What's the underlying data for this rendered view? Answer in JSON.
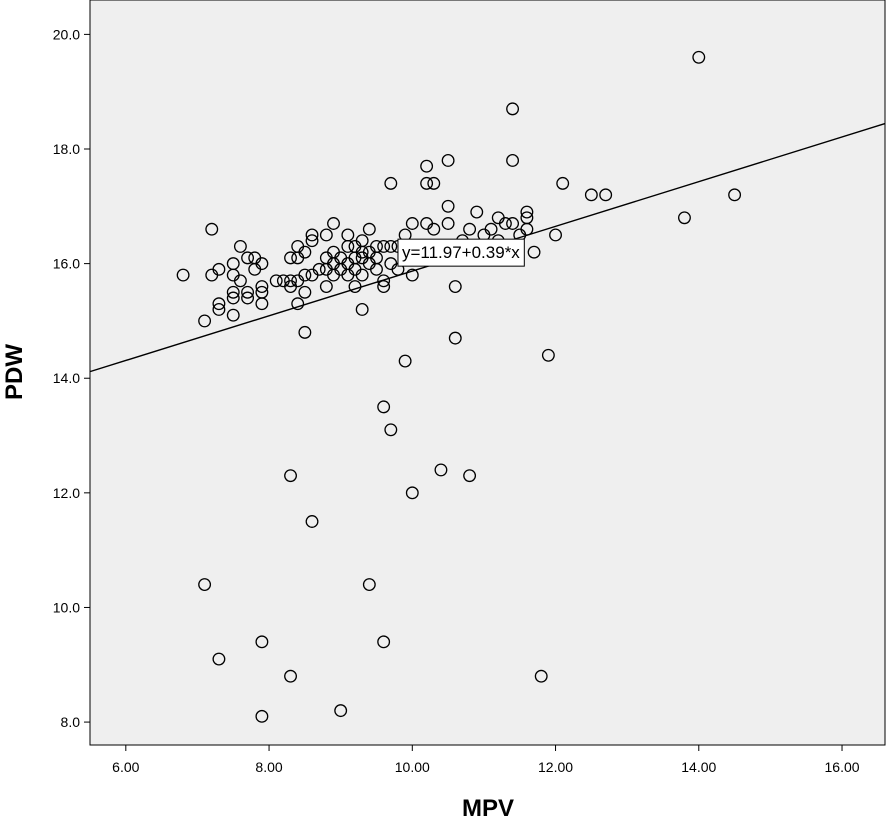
{
  "chart_data": {
    "type": "scatter",
    "title": "",
    "xlabel": "MPV",
    "ylabel": "PDW",
    "xlim": [
      5.5,
      16.6
    ],
    "ylim": [
      7.6,
      20.6
    ],
    "x_ticks": [
      6,
      8,
      10,
      12,
      14,
      16
    ],
    "y_ticks": [
      8,
      10,
      12,
      14,
      16,
      18,
      20
    ],
    "x_tick_labels": [
      "6.00",
      "8.00",
      "10.00",
      "12.00",
      "14.00",
      "16.00"
    ],
    "y_tick_labels": [
      "8.0",
      "10.0",
      "12.0",
      "14.0",
      "16.0",
      "18.0",
      "20.0"
    ],
    "grid": false,
    "plot_background": "#efefef",
    "marker": "open-circle",
    "fit_line": {
      "intercept": 11.97,
      "slope": 0.39,
      "label": "y=11.97+0.39*x",
      "label_at": [
        9.8,
        16.2
      ]
    },
    "points": [
      [
        6.8,
        15.8
      ],
      [
        7.1,
        15.0
      ],
      [
        7.1,
        10.4
      ],
      [
        7.2,
        16.6
      ],
      [
        7.2,
        15.8
      ],
      [
        7.3,
        15.9
      ],
      [
        7.3,
        15.3
      ],
      [
        7.3,
        15.2
      ],
      [
        7.3,
        9.1
      ],
      [
        7.5,
        16.0
      ],
      [
        7.5,
        15.8
      ],
      [
        7.5,
        15.5
      ],
      [
        7.5,
        15.4
      ],
      [
        7.5,
        15.1
      ],
      [
        7.6,
        16.3
      ],
      [
        7.6,
        15.7
      ],
      [
        7.7,
        16.1
      ],
      [
        7.7,
        15.5
      ],
      [
        7.7,
        15.4
      ],
      [
        7.8,
        16.1
      ],
      [
        7.8,
        15.9
      ],
      [
        7.9,
        16.0
      ],
      [
        7.9,
        15.6
      ],
      [
        7.9,
        15.5
      ],
      [
        7.9,
        15.3
      ],
      [
        7.9,
        9.4
      ],
      [
        7.9,
        8.1
      ],
      [
        8.1,
        15.7
      ],
      [
        8.2,
        15.7
      ],
      [
        8.3,
        16.1
      ],
      [
        8.3,
        15.7
      ],
      [
        8.3,
        15.6
      ],
      [
        8.3,
        12.3
      ],
      [
        8.3,
        8.8
      ],
      [
        8.4,
        16.3
      ],
      [
        8.4,
        16.1
      ],
      [
        8.4,
        15.7
      ],
      [
        8.4,
        15.3
      ],
      [
        8.5,
        16.2
      ],
      [
        8.5,
        15.8
      ],
      [
        8.5,
        15.5
      ],
      [
        8.5,
        14.8
      ],
      [
        8.6,
        16.5
      ],
      [
        8.6,
        16.4
      ],
      [
        8.6,
        15.8
      ],
      [
        8.6,
        11.5
      ],
      [
        8.7,
        15.9
      ],
      [
        8.8,
        16.5
      ],
      [
        8.8,
        16.1
      ],
      [
        8.8,
        15.9
      ],
      [
        8.8,
        15.6
      ],
      [
        8.9,
        16.7
      ],
      [
        8.9,
        16.2
      ],
      [
        8.9,
        16.0
      ],
      [
        8.9,
        15.8
      ],
      [
        9.0,
        16.1
      ],
      [
        9.0,
        15.9
      ],
      [
        9.0,
        8.2
      ],
      [
        9.1,
        16.5
      ],
      [
        9.1,
        16.3
      ],
      [
        9.1,
        16.0
      ],
      [
        9.1,
        15.8
      ],
      [
        9.2,
        16.3
      ],
      [
        9.2,
        16.1
      ],
      [
        9.2,
        15.9
      ],
      [
        9.2,
        15.6
      ],
      [
        9.3,
        16.4
      ],
      [
        9.3,
        16.2
      ],
      [
        9.3,
        16.1
      ],
      [
        9.3,
        15.8
      ],
      [
        9.3,
        15.2
      ],
      [
        9.4,
        16.6
      ],
      [
        9.4,
        16.2
      ],
      [
        9.4,
        16.0
      ],
      [
        9.4,
        10.4
      ],
      [
        9.5,
        16.3
      ],
      [
        9.5,
        16.1
      ],
      [
        9.5,
        15.9
      ],
      [
        9.6,
        16.3
      ],
      [
        9.6,
        15.7
      ],
      [
        9.6,
        15.6
      ],
      [
        9.6,
        13.5
      ],
      [
        9.6,
        9.4
      ],
      [
        9.7,
        17.4
      ],
      [
        9.7,
        16.3
      ],
      [
        9.7,
        16.0
      ],
      [
        9.7,
        13.1
      ],
      [
        9.8,
        16.3
      ],
      [
        9.8,
        15.9
      ],
      [
        9.9,
        16.5
      ],
      [
        9.9,
        16.1
      ],
      [
        9.9,
        14.3
      ],
      [
        10.0,
        16.7
      ],
      [
        10.0,
        15.8
      ],
      [
        10.0,
        12.0
      ],
      [
        10.1,
        16.1
      ],
      [
        10.2,
        17.7
      ],
      [
        10.2,
        17.4
      ],
      [
        10.2,
        16.7
      ],
      [
        10.3,
        17.4
      ],
      [
        10.3,
        16.6
      ],
      [
        10.4,
        12.4
      ],
      [
        10.5,
        17.8
      ],
      [
        10.5,
        17.0
      ],
      [
        10.5,
        16.7
      ],
      [
        10.6,
        15.6
      ],
      [
        10.6,
        14.7
      ],
      [
        10.7,
        16.4
      ],
      [
        10.8,
        16.6
      ],
      [
        10.8,
        12.3
      ],
      [
        10.9,
        16.9
      ],
      [
        11.0,
        16.5
      ],
      [
        11.1,
        16.6
      ],
      [
        11.2,
        16.8
      ],
      [
        11.2,
        16.4
      ],
      [
        11.3,
        16.7
      ],
      [
        11.4,
        18.7
      ],
      [
        11.4,
        17.8
      ],
      [
        11.4,
        16.7
      ],
      [
        11.5,
        16.5
      ],
      [
        11.6,
        16.9
      ],
      [
        11.6,
        16.8
      ],
      [
        11.6,
        16.6
      ],
      [
        11.7,
        16.2
      ],
      [
        11.8,
        8.8
      ],
      [
        11.9,
        14.4
      ],
      [
        12.0,
        16.5
      ],
      [
        12.1,
        17.4
      ],
      [
        12.5,
        17.2
      ],
      [
        12.7,
        17.2
      ],
      [
        13.8,
        16.8
      ],
      [
        14.0,
        19.6
      ],
      [
        14.5,
        17.2
      ]
    ]
  }
}
